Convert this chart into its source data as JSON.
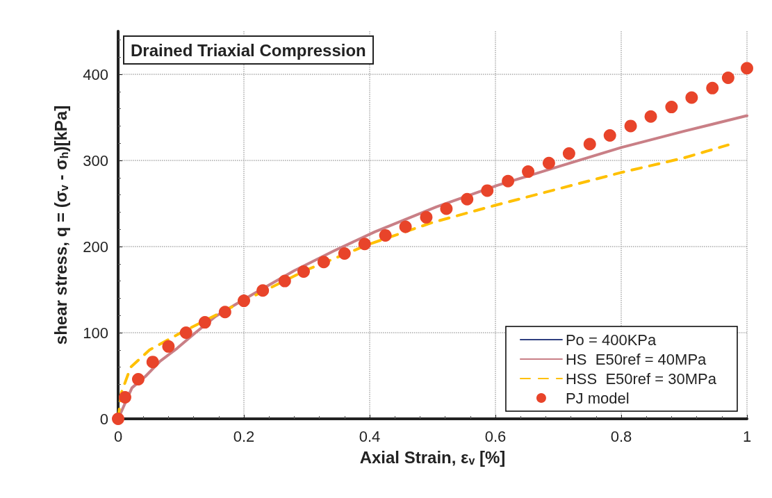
{
  "chart_data": {
    "type": "line",
    "title": "Drained Triaxial Compression",
    "xlabel": "Axial Strain, ε$_{v}$ [%]",
    "ylabel": "shear stress, q = (σ$_{v}$ - σ$_{h}$)[kPa]",
    "xlim": [
      0,
      1
    ],
    "xticks": [
      0,
      0.2,
      0.4,
      0.6,
      0.8,
      1
    ],
    "ylim": [
      0,
      450
    ],
    "yticks": [
      0,
      100,
      200,
      300,
      400
    ],
    "grid": true,
    "legend": "bottom right",
    "marker": "none",
    "series": [
      {
        "name": "Po = 400KPa",
        "color": "#2e3f7f",
        "line_style": "solid"
      },
      {
        "name": "HS  E50ref = 40MPa",
        "color": "#c97f86",
        "line_style": "solid",
        "x": [
          0,
          0.022,
          0.043,
          0.067,
          0.094,
          0.123,
          0.155,
          0.185,
          0.215,
          0.28,
          0.343,
          0.408,
          0.506,
          0.603,
          0.701,
          0.8,
          0.9,
          1.0
        ],
        "values": [
          0,
          36,
          49,
          67,
          82,
          100,
          119,
          132,
          145,
          172,
          195,
          217,
          246,
          271,
          293,
          315,
          334,
          352
        ]
      },
      {
        "name": "HSS  E50ref = 30MPa",
        "color": "#ffc000",
        "line_style": "dashed",
        "x": [
          0,
          0.005,
          0.02,
          0.05,
          0.1,
          0.2,
          0.3,
          0.4,
          0.5,
          0.6,
          0.7,
          0.8,
          0.9,
          0.97
        ],
        "values": [
          0,
          30,
          60,
          80,
          100,
          137,
          173,
          203,
          228,
          248,
          267,
          286,
          303,
          318
        ]
      },
      {
        "name": "PJ model",
        "type": "scatter",
        "marker": "circle",
        "color": "#e8442a",
        "x": [
          0,
          0.011,
          0.032,
          0.055,
          0.08,
          0.108,
          0.138,
          0.17,
          0.2,
          0.23,
          0.265,
          0.295,
          0.327,
          0.36,
          0.392,
          0.425,
          0.457,
          0.49,
          0.522,
          0.555,
          0.587,
          0.62,
          0.652,
          0.685,
          0.717,
          0.75,
          0.782,
          0.815,
          0.847,
          0.88,
          0.912,
          0.945,
          0.97,
          1.0
        ],
        "values": [
          0,
          25,
          46,
          66,
          84,
          100,
          112,
          124,
          137,
          149,
          160,
          171,
          182,
          192,
          203,
          213,
          223,
          234,
          244,
          255,
          265,
          276,
          287,
          297,
          308,
          319,
          329,
          340,
          351,
          362,
          373,
          384,
          396,
          407
        ]
      }
    ]
  }
}
